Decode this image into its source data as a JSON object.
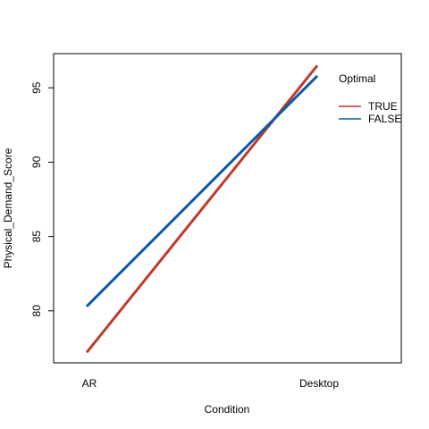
{
  "chart_data": {
    "type": "line",
    "title": "",
    "xlabel": "Condition",
    "ylabel": "Physical_Demand_Score",
    "categories": [
      "AR",
      "Desktop"
    ],
    "ylim": [
      76.5,
      97.3
    ],
    "yticks": [
      80,
      85,
      90,
      95
    ],
    "grid": false,
    "legend": {
      "title": "Optimal",
      "placement": "top-right"
    },
    "series": [
      {
        "name": "TRUE",
        "values": [
          77.2,
          96.5
        ],
        "color": "#c0392b"
      },
      {
        "name": "FALSE",
        "values": [
          80.3,
          95.8
        ],
        "color": "#0a5aa8"
      }
    ]
  }
}
